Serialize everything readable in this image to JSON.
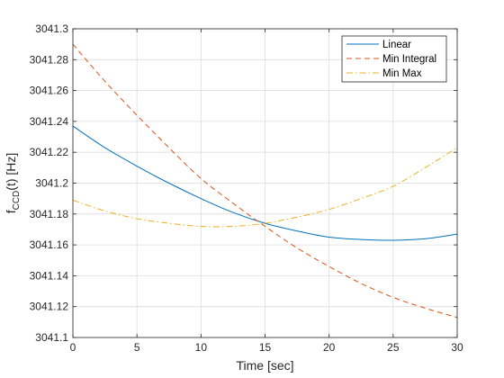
{
  "chart_data": {
    "type": "line",
    "xlabel": "Time [sec]",
    "ylabel_main": "f",
    "ylabel_sub": "CCD",
    "ylabel_rest": "(t) [Hz]",
    "xlim": [
      0,
      30
    ],
    "ylim": [
      3041.1,
      3041.3
    ],
    "xticks": [
      0,
      5,
      10,
      15,
      20,
      25,
      30
    ],
    "xtick_labels": [
      "0",
      "5",
      "10",
      "15",
      "20",
      "25",
      "30"
    ],
    "yticks": [
      3041.1,
      3041.12,
      3041.14,
      3041.16,
      3041.18,
      3041.2,
      3041.22,
      3041.24,
      3041.26,
      3041.28,
      3041.3
    ],
    "ytick_labels": [
      "3041.1",
      "3041.12",
      "3041.14",
      "3041.16",
      "3041.18",
      "3041.2",
      "3041.22",
      "3041.24",
      "3041.26",
      "3041.28",
      "3041.3"
    ],
    "grid": true,
    "legend_position": "top-right",
    "x": [
      0,
      2.5,
      5,
      7.5,
      10,
      12.5,
      15,
      17.5,
      20,
      22.5,
      25,
      27.5,
      30
    ],
    "series": [
      {
        "name": "Linear",
        "color": "#0072BD",
        "dash": "solid",
        "values": [
          3041.237,
          3041.223,
          3041.211,
          3041.2,
          3041.19,
          3041.181,
          3041.174,
          3041.169,
          3041.165,
          3041.1635,
          3041.163,
          3041.164,
          3041.167
        ]
      },
      {
        "name": "Min Integral",
        "color": "#D95319",
        "dash": "dashed",
        "values": [
          3041.29,
          3041.266,
          3041.244,
          3041.223,
          3041.203,
          3041.187,
          3041.172,
          3041.158,
          3041.146,
          3041.135,
          3041.126,
          3041.119,
          3041.113
        ]
      },
      {
        "name": "Min Max",
        "color": "#EDB120",
        "dash": "dashdot",
        "values": [
          3041.189,
          3041.182,
          3041.177,
          3041.174,
          3041.172,
          3041.172,
          3041.174,
          3041.178,
          3041.183,
          3041.19,
          3041.198,
          3041.21,
          3041.223
        ]
      }
    ]
  }
}
